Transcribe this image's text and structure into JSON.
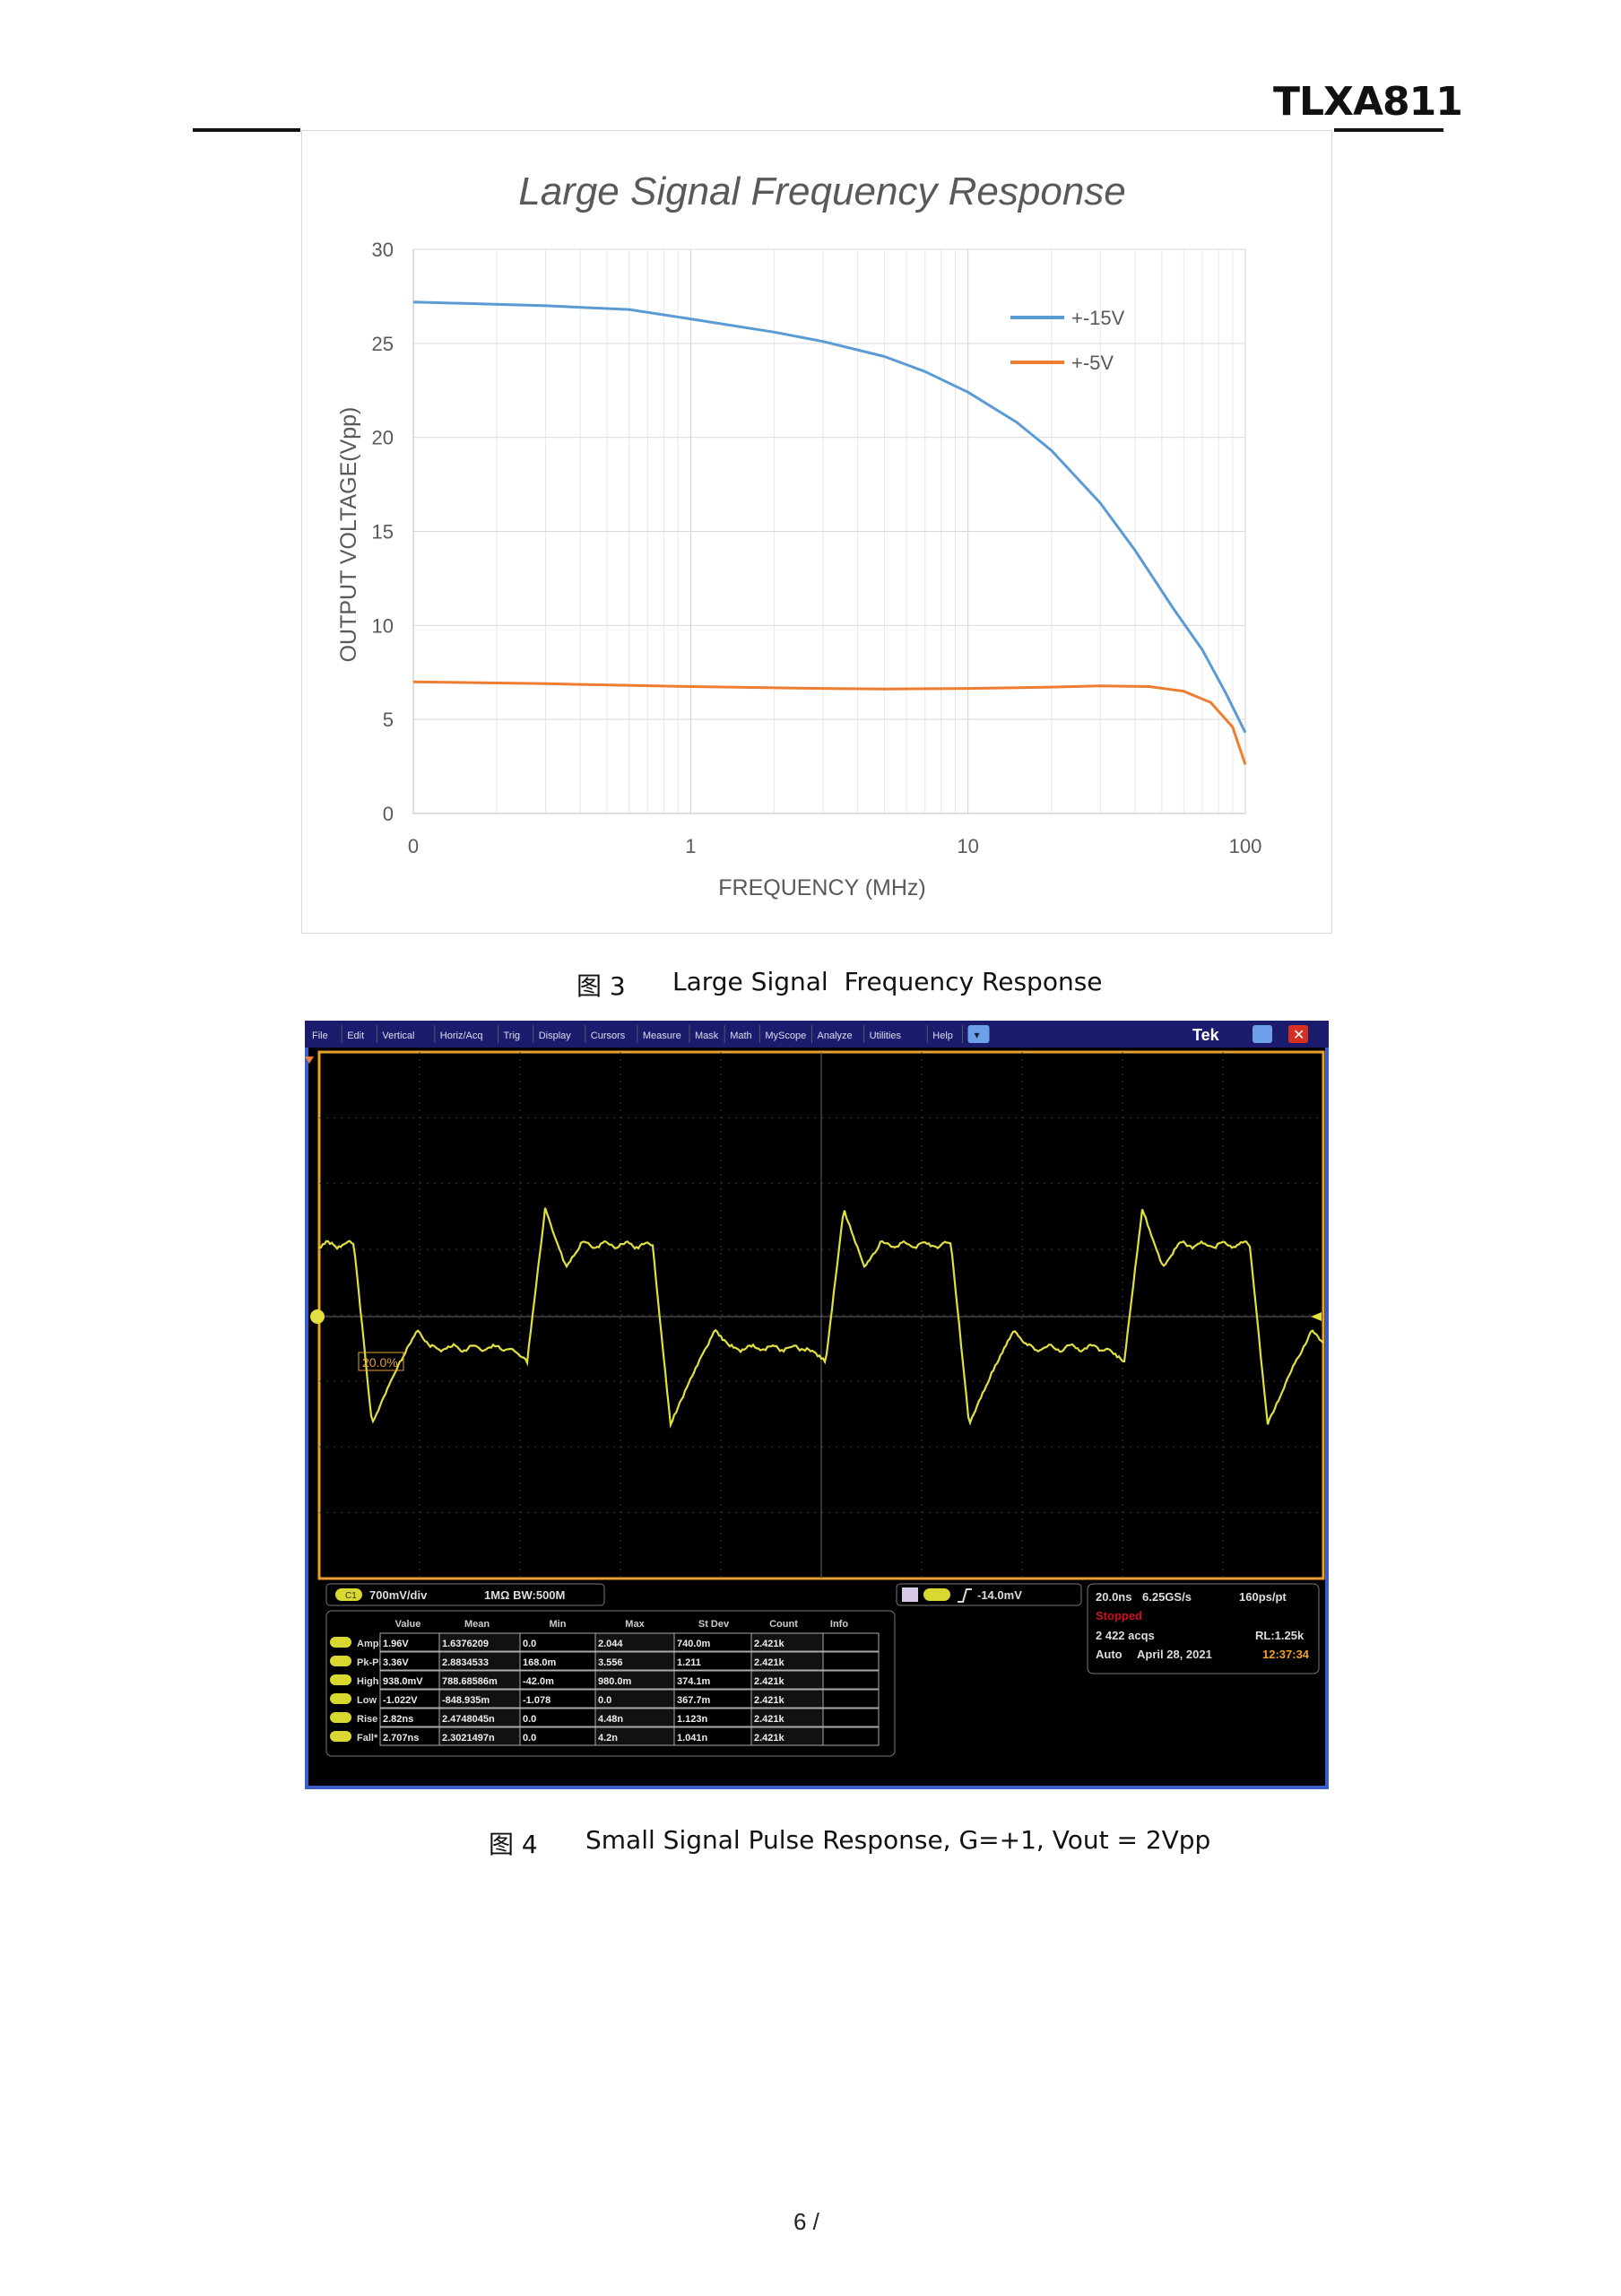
{
  "header": {
    "doc_title": "TLXA811"
  },
  "figure3": {
    "caption_label": "图 3",
    "caption_text": "Large Signal  Frequency Response"
  },
  "chart_data": {
    "type": "line",
    "title": "Large Signal Frequency Response",
    "xlabel": "FREQUENCY (MHz)",
    "ylabel": "OUTPUT VOLTAGE(Vpp)",
    "xscale": "log",
    "xlim": [
      0.1,
      100
    ],
    "xtick_labels": [
      "0",
      "1",
      "10",
      "100"
    ],
    "ylim": [
      0,
      30
    ],
    "yticks": [
      0,
      5,
      10,
      15,
      20,
      25,
      30
    ],
    "grid": true,
    "legend_position": "top-right",
    "series": [
      {
        "name": "+-15V",
        "color": "#5b9bd5",
        "x": [
          0.1,
          0.3,
          0.6,
          1,
          2,
          3,
          5,
          7,
          10,
          15,
          20,
          30,
          40,
          55,
          70,
          85,
          100
        ],
        "y": [
          27.2,
          27.0,
          26.8,
          26.3,
          25.6,
          25.1,
          24.3,
          23.5,
          22.4,
          20.8,
          19.3,
          16.5,
          14.0,
          10.9,
          8.7,
          6.4,
          4.3
        ]
      },
      {
        "name": "+-5V",
        "color": "#ed7d31",
        "x": [
          0.1,
          0.3,
          1,
          3,
          5,
          10,
          20,
          30,
          45,
          60,
          75,
          90,
          100
        ],
        "y": [
          7.0,
          6.9,
          6.75,
          6.65,
          6.62,
          6.65,
          6.72,
          6.78,
          6.75,
          6.5,
          5.9,
          4.6,
          2.6
        ]
      }
    ]
  },
  "figure4": {
    "caption_label": "图 4",
    "caption_text": "Small Signal Pulse Response, G=+1, Vout = 2Vpp"
  },
  "scope": {
    "menu": [
      "File",
      "Edit",
      "Vertical",
      "Horiz/Acq",
      "Trig",
      "Display",
      "Cursors",
      "Measure",
      "Mask",
      "Math",
      "MyScope",
      "Analyze",
      "Utilities",
      "Help"
    ],
    "brand": "Tek",
    "ref_marker": "20.0%",
    "channel_badge": "C1",
    "channel_scale": "700mV/div",
    "channel_coupling": "1MΩ  BW:500M",
    "trigger_level": "-14.0mV",
    "horiz": {
      "scale": "20.0ns",
      "rate": "6.25GS/s",
      "res": "160ps/pt",
      "status": "Stopped",
      "acqs": "2 422 acqs",
      "rl": "RL:1.25k",
      "mode": "Auto",
      "date": "April 28, 2021",
      "time": "12:37:34"
    },
    "colors": {
      "trace": "#e0e040",
      "status": "#d01020",
      "time": "#f0a020",
      "frame": "#e8a030",
      "menubar": "#1c1c6e"
    },
    "measure_headers": [
      "Value",
      "Mean",
      "Min",
      "Max",
      "St Dev",
      "Count",
      "Info"
    ],
    "measure_rows": [
      {
        "name": "Ampl",
        "cells": [
          "1.96V",
          "1.6376209",
          "0.0",
          "2.044",
          "740.0m",
          "2.421k",
          ""
        ]
      },
      {
        "name": "Pk-Pk",
        "cells": [
          "3.36V",
          "2.8834533",
          "168.0m",
          "3.556",
          "1.211",
          "2.421k",
          ""
        ]
      },
      {
        "name": "High",
        "cells": [
          "938.0mV",
          "788.68586m",
          "-42.0m",
          "980.0m",
          "374.1m",
          "2.421k",
          ""
        ]
      },
      {
        "name": "Low",
        "cells": [
          "-1.022V",
          "-848.935m",
          "-1.078",
          "0.0",
          "367.7m",
          "2.421k",
          ""
        ]
      },
      {
        "name": "Rise",
        "cells": [
          "2.82ns",
          "2.4748045n",
          "0.0",
          "4.48n",
          "1.123n",
          "2.421k",
          ""
        ]
      },
      {
        "name": "Fall*",
        "cells": [
          "2.707ns",
          "2.3021497n",
          "0.0",
          "4.2n",
          "1.041n",
          "2.421k",
          ""
        ]
      }
    ]
  },
  "footer": {
    "page": "6 /"
  }
}
